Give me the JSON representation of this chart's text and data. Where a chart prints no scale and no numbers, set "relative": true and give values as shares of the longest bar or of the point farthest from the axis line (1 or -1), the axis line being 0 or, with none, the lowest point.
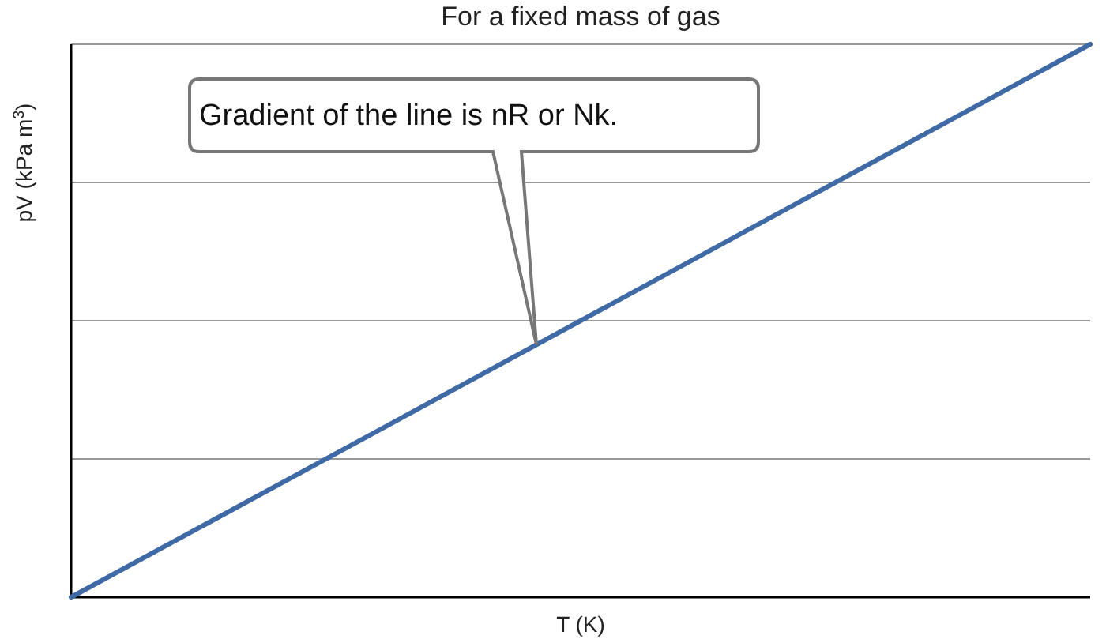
{
  "chart_data": {
    "type": "line",
    "title": "For a fixed mass of gas",
    "xlabel": "T (K)",
    "ylabel": "pV (kPa m$^{3}$)",
    "categories": [
      null,
      null
    ],
    "relative": true,
    "series": [
      {
        "color": "#3f6aa6",
        "values": [
          0,
          1
        ]
      }
    ],
    "ref_lines": [
      {
        "axis": "y",
        "value": 0.25,
        "color": "#999999"
      },
      {
        "axis": "y",
        "value": 0.5,
        "color": "#999999"
      },
      {
        "axis": "y",
        "value": 0.75,
        "color": "#999999"
      },
      {
        "axis": "y",
        "value": 1,
        "color": "#999999"
      }
    ],
    "annotations": [
      "Gradient of the line is nR or Nk."
    ]
  }
}
